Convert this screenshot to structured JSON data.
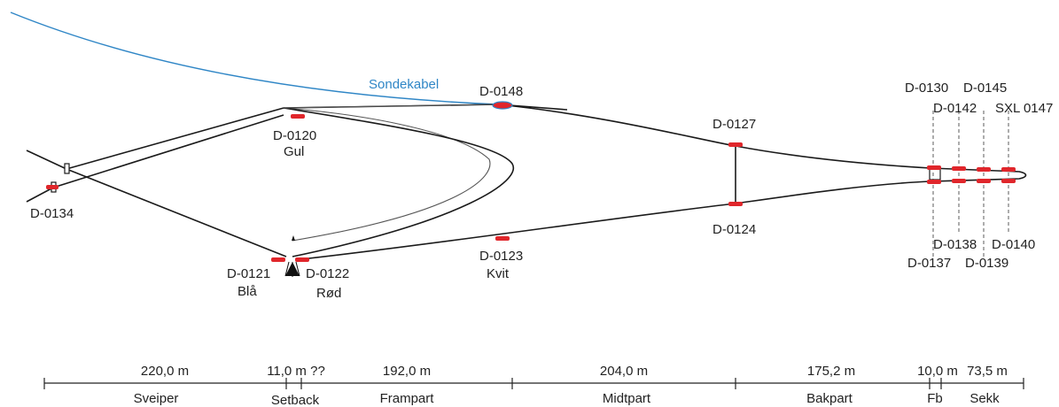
{
  "diagram": {
    "cable_label": "Sondekabel",
    "colors": {
      "cable": "#2f86c6",
      "sensor": "#e0262b",
      "line": "#1a1a1a"
    },
    "sensors": {
      "s0148": "D-0148",
      "s0120": "D-0120",
      "s0120_name": "Gul",
      "s0127": "D-0127",
      "s0124": "D-0124",
      "s0134": "D-0134",
      "s0121": "D-0121",
      "s0121_name": "Blå",
      "s0122": "D-0122",
      "s0122_name": "Rød",
      "s0123": "D-0123",
      "s0123_name": "Kvit",
      "s0130": "D-0130",
      "s0145": "D-0145",
      "s0142": "D-0142",
      "s0147": "SXL 0147",
      "s0138": "D-0138",
      "s0140": "D-0140",
      "s0137": "D-0137",
      "s0139": "D-0139"
    },
    "sections": [
      {
        "length": "220,0 m",
        "name": "Sveiper"
      },
      {
        "length": "11,0 m ??",
        "name": "Setback"
      },
      {
        "length": "192,0 m",
        "name": "Frampart"
      },
      {
        "length": "204,0 m",
        "name": "Midtpart"
      },
      {
        "length": "175,2 m",
        "name": "Bakpart"
      },
      {
        "length": "10,0 m",
        "name": "Fb"
      },
      {
        "length": "73,5 m",
        "name": "Sekk"
      }
    ]
  }
}
